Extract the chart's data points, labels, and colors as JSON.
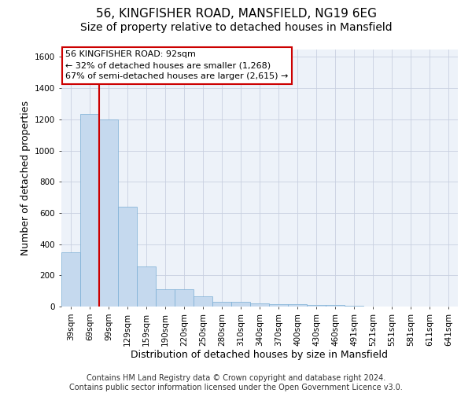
{
  "title1": "56, KINGFISHER ROAD, MANSFIELD, NG19 6EG",
  "title2": "Size of property relative to detached houses in Mansfield",
  "xlabel": "Distribution of detached houses by size in Mansfield",
  "ylabel": "Number of detached properties",
  "annotation_title": "56 KINGFISHER ROAD: 92sqm",
  "annotation_line1": "← 32% of detached houses are smaller (1,268)",
  "annotation_line2": "67% of semi-detached houses are larger (2,615) →",
  "footer1": "Contains HM Land Registry data © Crown copyright and database right 2024.",
  "footer2": "Contains public sector information licensed under the Open Government Licence v3.0.",
  "bin_labels": [
    "39sqm",
    "69sqm",
    "99sqm",
    "129sqm",
    "159sqm",
    "190sqm",
    "220sqm",
    "250sqm",
    "280sqm",
    "310sqm",
    "340sqm",
    "370sqm",
    "400sqm",
    "430sqm",
    "460sqm",
    "491sqm",
    "521sqm",
    "551sqm",
    "581sqm",
    "611sqm",
    "641sqm"
  ],
  "bar_values": [
    350,
    1235,
    1200,
    640,
    255,
    110,
    110,
    65,
    30,
    30,
    20,
    15,
    13,
    10,
    10,
    3,
    2,
    1,
    0,
    0,
    0
  ],
  "bar_color": "#c5d9ee",
  "bar_edge_color": "#7aadd4",
  "red_line_bin": 2,
  "ylim_max": 1650,
  "yticks": [
    0,
    200,
    400,
    600,
    800,
    1000,
    1200,
    1400,
    1600
  ],
  "red_line_color": "#cc0000",
  "annotation_box_edge": "#cc0000",
  "title1_fontsize": 11,
  "title2_fontsize": 10,
  "axis_label_fontsize": 9,
  "tick_fontsize": 7.5,
  "annotation_fontsize": 8,
  "footer_fontsize": 7,
  "grid_color": "#c8d0e0",
  "plot_bg_color": "#edf2f9",
  "fig_bg_color": "#ffffff"
}
